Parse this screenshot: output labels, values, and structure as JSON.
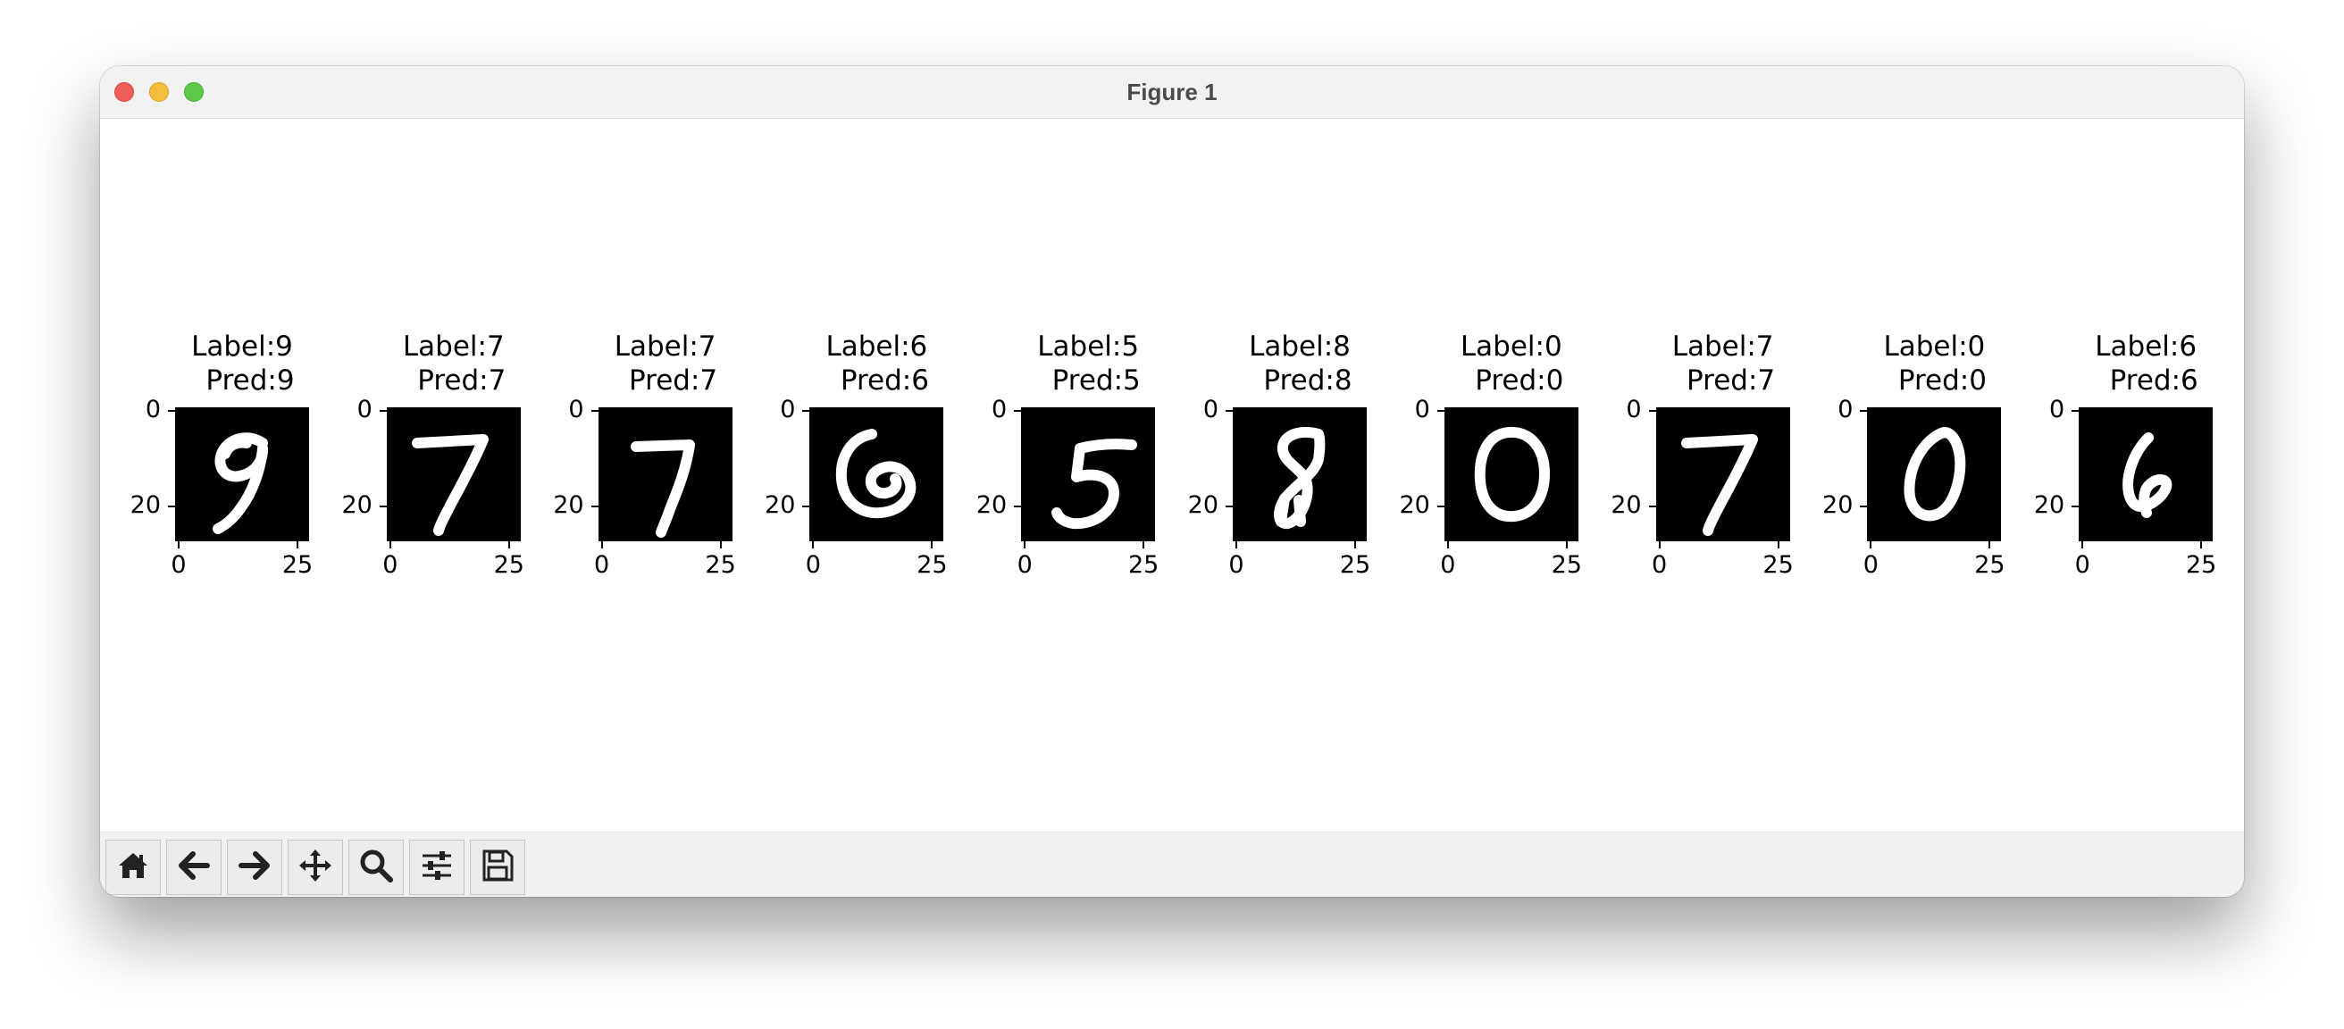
{
  "window": {
    "title": "Figure 1"
  },
  "toolbar": {
    "buttons": [
      {
        "name": "home-button",
        "icon": "home-icon"
      },
      {
        "name": "back-button",
        "icon": "arrow-left-icon"
      },
      {
        "name": "forward-button",
        "icon": "arrow-right-icon"
      },
      {
        "name": "pan-button",
        "icon": "move-icon"
      },
      {
        "name": "zoom-button",
        "icon": "magnifier-icon"
      },
      {
        "name": "configure-subplots-button",
        "icon": "sliders-icon"
      },
      {
        "name": "save-button",
        "icon": "floppy-disk-icon"
      }
    ]
  },
  "panels": [
    {
      "label": "Label:9",
      "pred": "Pred:9",
      "digit": "9",
      "y_ticks": [
        "0",
        "20"
      ],
      "x_ticks": [
        "0",
        "25"
      ]
    },
    {
      "label": "Label:7",
      "pred": "Pred:7",
      "digit": "7",
      "y_ticks": [
        "0",
        "20"
      ],
      "x_ticks": [
        "0",
        "25"
      ]
    },
    {
      "label": "Label:7",
      "pred": "Pred:7",
      "digit": "7",
      "y_ticks": [
        "0",
        "20"
      ],
      "x_ticks": [
        "0",
        "25"
      ]
    },
    {
      "label": "Label:6",
      "pred": "Pred:6",
      "digit": "6",
      "y_ticks": [
        "0",
        "20"
      ],
      "x_ticks": [
        "0",
        "25"
      ]
    },
    {
      "label": "Label:5",
      "pred": "Pred:5",
      "digit": "5",
      "y_ticks": [
        "0",
        "20"
      ],
      "x_ticks": [
        "0",
        "25"
      ]
    },
    {
      "label": "Label:8",
      "pred": "Pred:8",
      "digit": "8",
      "y_ticks": [
        "0",
        "20"
      ],
      "x_ticks": [
        "0",
        "25"
      ]
    },
    {
      "label": "Label:0",
      "pred": "Pred:0",
      "digit": "0",
      "y_ticks": [
        "0",
        "20"
      ],
      "x_ticks": [
        "0",
        "25"
      ]
    },
    {
      "label": "Label:7",
      "pred": "Pred:7",
      "digit": "7",
      "y_ticks": [
        "0",
        "20"
      ],
      "x_ticks": [
        "0",
        "25"
      ]
    },
    {
      "label": "Label:0",
      "pred": "Pred:0",
      "digit": "0",
      "y_ticks": [
        "0",
        "20"
      ],
      "x_ticks": [
        "0",
        "25"
      ]
    },
    {
      "label": "Label:6",
      "pred": "Pred:6",
      "digit": "6",
      "y_ticks": [
        "0",
        "20"
      ],
      "x_ticks": [
        "0",
        "25"
      ]
    }
  ]
}
